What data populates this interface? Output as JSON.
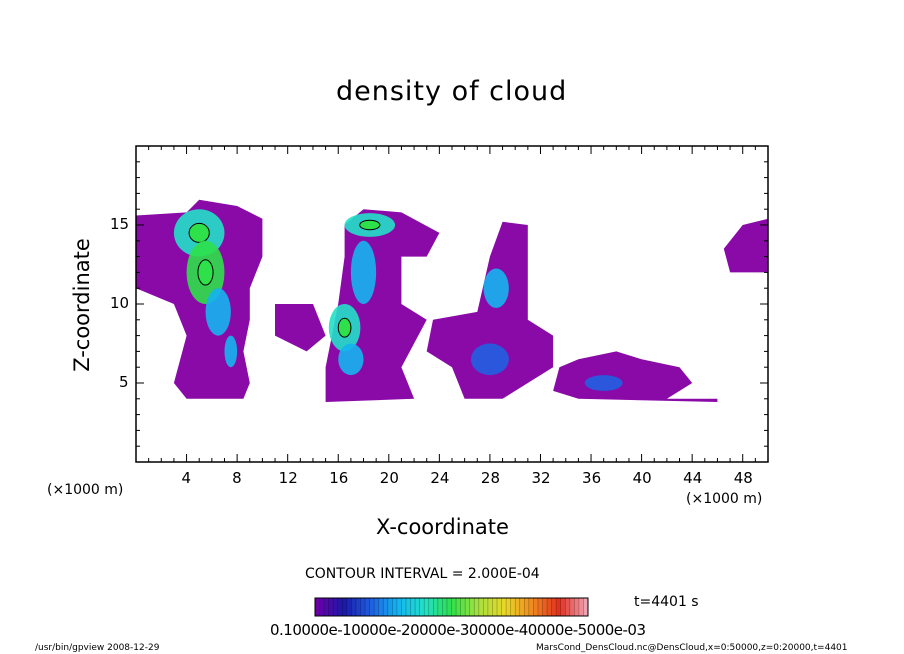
{
  "chart_data": {
    "type": "heatmap",
    "title": "density of cloud",
    "xlabel": "X-coordinate",
    "ylabel": "Z-coordinate",
    "x_unit": "(×1000 m)",
    "y_unit": "(×1000 m)",
    "xlim": [
      0,
      50
    ],
    "ylim": [
      0,
      20
    ],
    "x_ticks": [
      4,
      8,
      12,
      16,
      20,
      24,
      28,
      32,
      36,
      40,
      44,
      48
    ],
    "y_ticks": [
      5,
      10,
      15
    ],
    "contour_interval": "CONTOUR INTERVAL = 2.000E-04",
    "time": "t=4401 s",
    "colorbar_labels": "0.10000e-10000e-20000e-30000e-40000e-5000e-03",
    "colorbar_range": [
      0,
      0.0006
    ],
    "colormap": [
      "#6a00a8",
      "#1a1aa8",
      "#1f5fe0",
      "#14b4f0",
      "#22e0c8",
      "#2ee04a",
      "#a8e040",
      "#e8d828",
      "#f08a20",
      "#e03020",
      "#f0a0b0"
    ],
    "background_color": "#8a0aa8",
    "cells": [
      {
        "x": 5.0,
        "z": 14.5,
        "w": 4.0,
        "h": 3.0,
        "level": 3
      },
      {
        "x": 5.5,
        "z": 12.0,
        "w": 3.0,
        "h": 4.0,
        "level": 4
      },
      {
        "x": 6.5,
        "z": 9.5,
        "w": 2.0,
        "h": 3.0,
        "level": 2
      },
      {
        "x": 7.5,
        "z": 7.0,
        "w": 1.0,
        "h": 2.0,
        "level": 2
      },
      {
        "x": 18.5,
        "z": 15.0,
        "w": 4.0,
        "h": 1.5,
        "level": 3
      },
      {
        "x": 18.0,
        "z": 12.0,
        "w": 2.0,
        "h": 4.0,
        "level": 2
      },
      {
        "x": 16.5,
        "z": 8.5,
        "w": 2.5,
        "h": 3.0,
        "level": 3
      },
      {
        "x": 17.0,
        "z": 6.5,
        "w": 2.0,
        "h": 2.0,
        "level": 2
      },
      {
        "x": 28.5,
        "z": 11.0,
        "w": 2.0,
        "h": 2.5,
        "level": 2
      },
      {
        "x": 28.0,
        "z": 6.5,
        "w": 3.0,
        "h": 2.0,
        "level": 1
      },
      {
        "x": 37.0,
        "z": 5.0,
        "w": 3.0,
        "h": 1.0,
        "level": 1
      }
    ],
    "grid": false
  },
  "footer": {
    "left": "/usr/bin/gpview   2008-12-29",
    "right": "MarsCond_DensCloud.nc@DensCloud,x=0:50000,z=0:20000,t=4401"
  }
}
